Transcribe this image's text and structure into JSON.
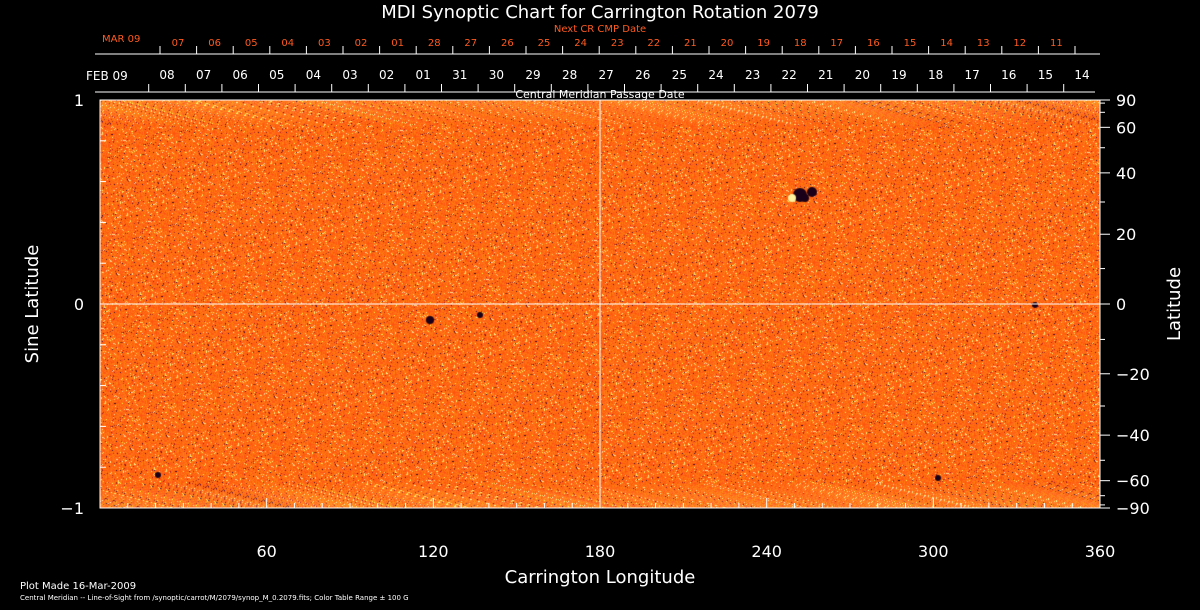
{
  "chart_data": {
    "type": "heatmap",
    "title": "MDI Synoptic Chart for Carrington Rotation 2079",
    "xlabel": "Carrington Longitude",
    "ylabel_left": "Sine Latitude",
    "ylabel_right": "Latitude",
    "xlim": [
      0,
      360
    ],
    "ylim": [
      -1,
      1
    ],
    "x_ticks": [
      60,
      120,
      180,
      240,
      300,
      360
    ],
    "y_ticks_left": [
      {
        "label": "1",
        "value": 1
      },
      {
        "label": "0",
        "value": 0
      },
      {
        "label": "−1",
        "value": -1
      }
    ],
    "y_ticks_right_deg": [
      90,
      60,
      40,
      20,
      0,
      -20,
      -40,
      -60,
      -90
    ],
    "y_tick_right_labels": [
      "90",
      "60",
      "40",
      "20",
      "0",
      "−20",
      "−40",
      "−60",
      "−90"
    ],
    "cmp_axis": {
      "label": "Central Meridian Passage Date",
      "start_label": "FEB 09",
      "day_labels": [
        "08",
        "07",
        "06",
        "05",
        "04",
        "03",
        "02",
        "01",
        "31",
        "30",
        "29",
        "28",
        "27",
        "26",
        "25",
        "24",
        "23",
        "22",
        "21",
        "20",
        "19",
        "18",
        "17",
        "16",
        "15",
        "14"
      ]
    },
    "next_cmp_axis": {
      "label": "Next CR CMP Date",
      "start_label": "MAR 09",
      "day_labels": [
        "07",
        "06",
        "05",
        "04",
        "03",
        "02",
        "01",
        "28",
        "27",
        "26",
        "25",
        "24",
        "23",
        "22",
        "21",
        "20",
        "19",
        "18",
        "17",
        "16",
        "15",
        "14",
        "13",
        "12",
        "11"
      ]
    },
    "colormap": {
      "low": "#1a0018",
      "mid": "#ff5a0a",
      "high": "#fff2a0"
    },
    "grid": "center crosshair at longitude 180 and latitude 0",
    "footer_line1": "Plot Made 16-Mar-2009",
    "footer_line2": "Central Meridian -- Line-of-Sight from /synoptic/carrot/M/2079/synop_M_0.2079.fits; Color Table Range ± 100 G"
  },
  "colors": {
    "background": "#000000",
    "text": "#ffffff",
    "secondary_axis_text": "#ff5a1f"
  }
}
